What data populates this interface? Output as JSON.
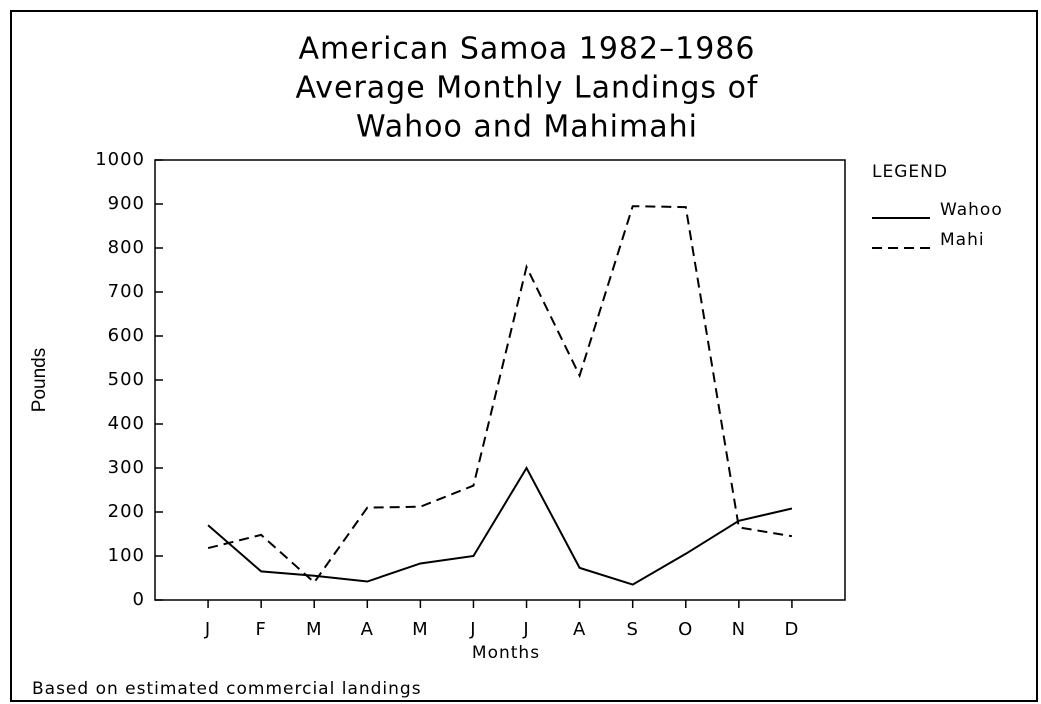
{
  "chart_data": {
    "type": "line",
    "title": [
      "American Samoa 1982–1986",
      "Average Monthly Landings of",
      "Wahoo and Mahimahi"
    ],
    "x_label": "Months",
    "y_label": "Pounds",
    "legend_title": "LEGEND",
    "footnote": "Based on estimated commercial landings",
    "categories": [
      "J",
      "F",
      "M",
      "A",
      "M",
      "J",
      "J",
      "A",
      "S",
      "O",
      "N",
      "D"
    ],
    "series": [
      {
        "name": "Wahoo",
        "color": "#000000",
        "dash": "none",
        "values": [
          170,
          65,
          55,
          42,
          83,
          100,
          300,
          73,
          35,
          105,
          180,
          208
        ]
      },
      {
        "name": "Mahi",
        "color": "#000000",
        "dash": "10,6",
        "values": [
          118,
          148,
          40,
          210,
          212,
          260,
          757,
          510,
          895,
          893,
          165,
          145
        ]
      }
    ],
    "ylim": [
      0,
      1000
    ],
    "yticks": [
      0,
      100,
      200,
      300,
      400,
      500,
      600,
      700,
      800,
      900,
      1000
    ]
  }
}
